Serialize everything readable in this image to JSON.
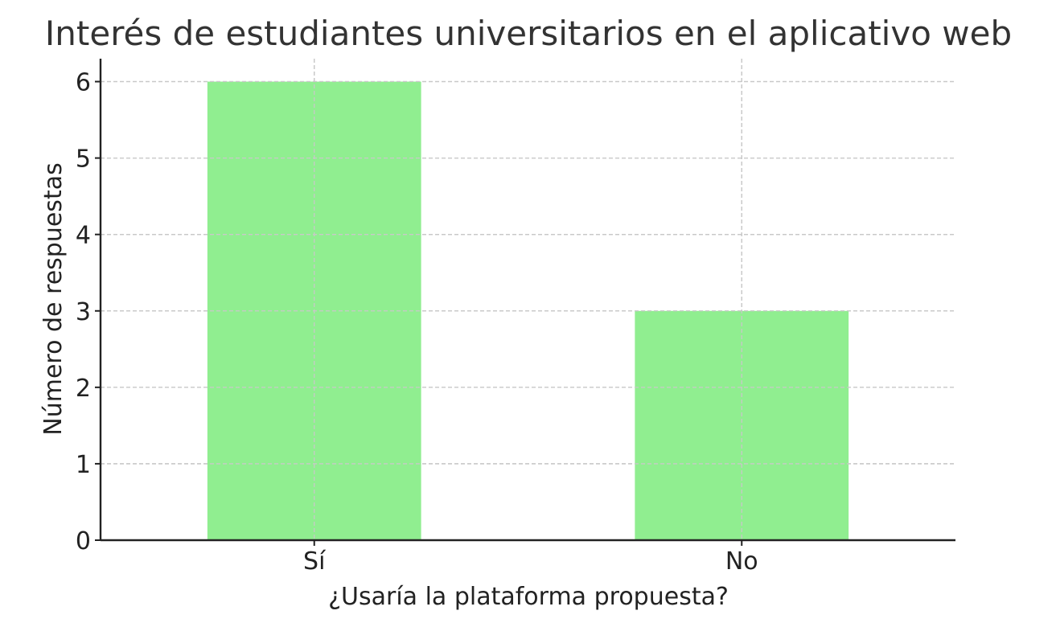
{
  "chart_data": {
    "type": "bar",
    "title": "Interés de estudiantes universitarios en el aplicativo web",
    "xlabel": "¿Usaría la plataforma propuesta?",
    "ylabel": "Número de respuestas",
    "categories": [
      "Sí",
      "No"
    ],
    "values": [
      6,
      3
    ],
    "ylim": [
      0,
      6.3
    ],
    "yticks": [
      0,
      1,
      2,
      3,
      4,
      5,
      6
    ],
    "grid": true,
    "bar_color": "#90ee90"
  }
}
